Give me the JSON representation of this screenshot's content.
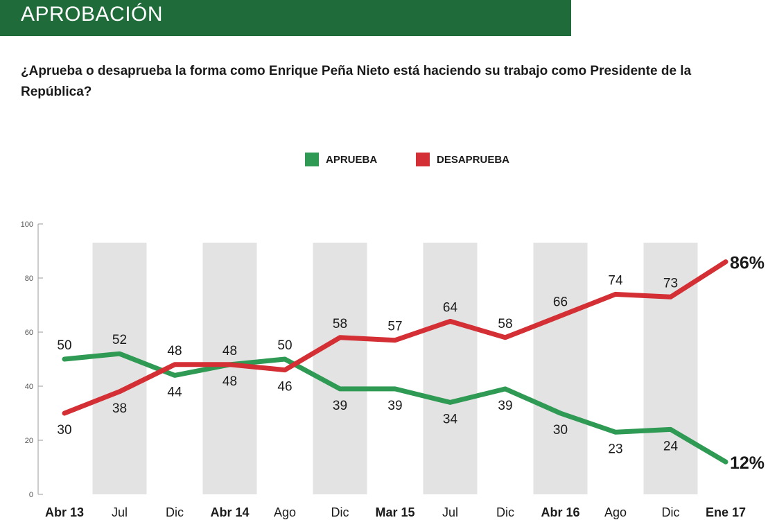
{
  "header": {
    "title": "APROBACIÓN"
  },
  "question": "¿Aprueba o desaprueba la forma como Enrique Peña Nieto está haciendo su trabajo como Presidente de la República?",
  "colors": {
    "header_bg": "#1f6b3a",
    "aprueba": "#2e9a53",
    "desaprueba": "#d32f34",
    "band": "#e3e3e3"
  },
  "chart_data": {
    "type": "line",
    "categories": [
      "Abr 13",
      "Jul",
      "Dic",
      "Abr 14",
      "Ago",
      "Dic",
      "Mar 15",
      "Jul",
      "Dic",
      "Abr 16",
      "Ago",
      "Dic",
      "Ene 17"
    ],
    "bold_categories": [
      "Abr 13",
      "Abr 14",
      "Mar 15",
      "Abr 16",
      "Ene 17"
    ],
    "series": [
      {
        "name": "APRUEBA",
        "color": "#2e9a53",
        "values": [
          50,
          52,
          44,
          48,
          50,
          39,
          39,
          34,
          39,
          30,
          23,
          24,
          12
        ],
        "last_label": "12%"
      },
      {
        "name": "DESAPRUEBA",
        "color": "#d32f34",
        "values": [
          30,
          38,
          48,
          48,
          46,
          58,
          57,
          64,
          58,
          66,
          74,
          73,
          86
        ],
        "last_label": "86%"
      }
    ],
    "y_ticks": [
      "0",
      "20",
      "40",
      "60",
      "80",
      "100"
    ],
    "ylim": [
      0,
      100
    ],
    "legend": "top-center"
  }
}
